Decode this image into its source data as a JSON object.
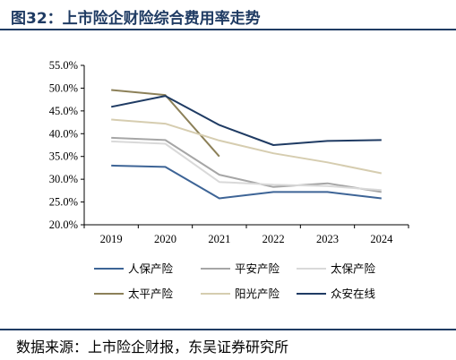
{
  "title": "图32：上市险企财险综合费用率走势",
  "source": "数据来源：上市险企财报，东吴证券研究所",
  "chart_data": {
    "type": "line",
    "x": [
      "2019",
      "2020",
      "2021",
      "2022",
      "2023",
      "2024"
    ],
    "y_ticks": [
      "20.0%",
      "25.0%",
      "30.0%",
      "35.0%",
      "40.0%",
      "45.0%",
      "50.0%",
      "55.0%"
    ],
    "ylim": [
      20,
      55
    ],
    "grid": false,
    "legend_position": "bottom",
    "series": [
      {
        "name": "人保产险",
        "color": "#3d6496",
        "values": [
          33.0,
          32.7,
          25.8,
          27.2,
          27.2,
          25.8
        ]
      },
      {
        "name": "平安产险",
        "color": "#a6a6a6",
        "values": [
          39.1,
          38.6,
          31.0,
          28.3,
          29.1,
          27.2
        ]
      },
      {
        "name": "太保产险",
        "color": "#d9d9d9",
        "values": [
          38.3,
          37.8,
          29.4,
          28.8,
          28.5,
          27.6
        ]
      },
      {
        "name": "太平产险",
        "color": "#8c8058",
        "values": [
          49.6,
          48.5,
          35.0,
          null,
          null,
          null
        ]
      },
      {
        "name": "阳光产险",
        "color": "#d6cdb0",
        "values": [
          43.1,
          42.2,
          38.5,
          35.7,
          33.7,
          31.3
        ]
      },
      {
        "name": "众安在线",
        "color": "#1f3b63",
        "values": [
          45.9,
          48.3,
          41.9,
          37.5,
          38.4,
          38.6
        ]
      }
    ]
  }
}
